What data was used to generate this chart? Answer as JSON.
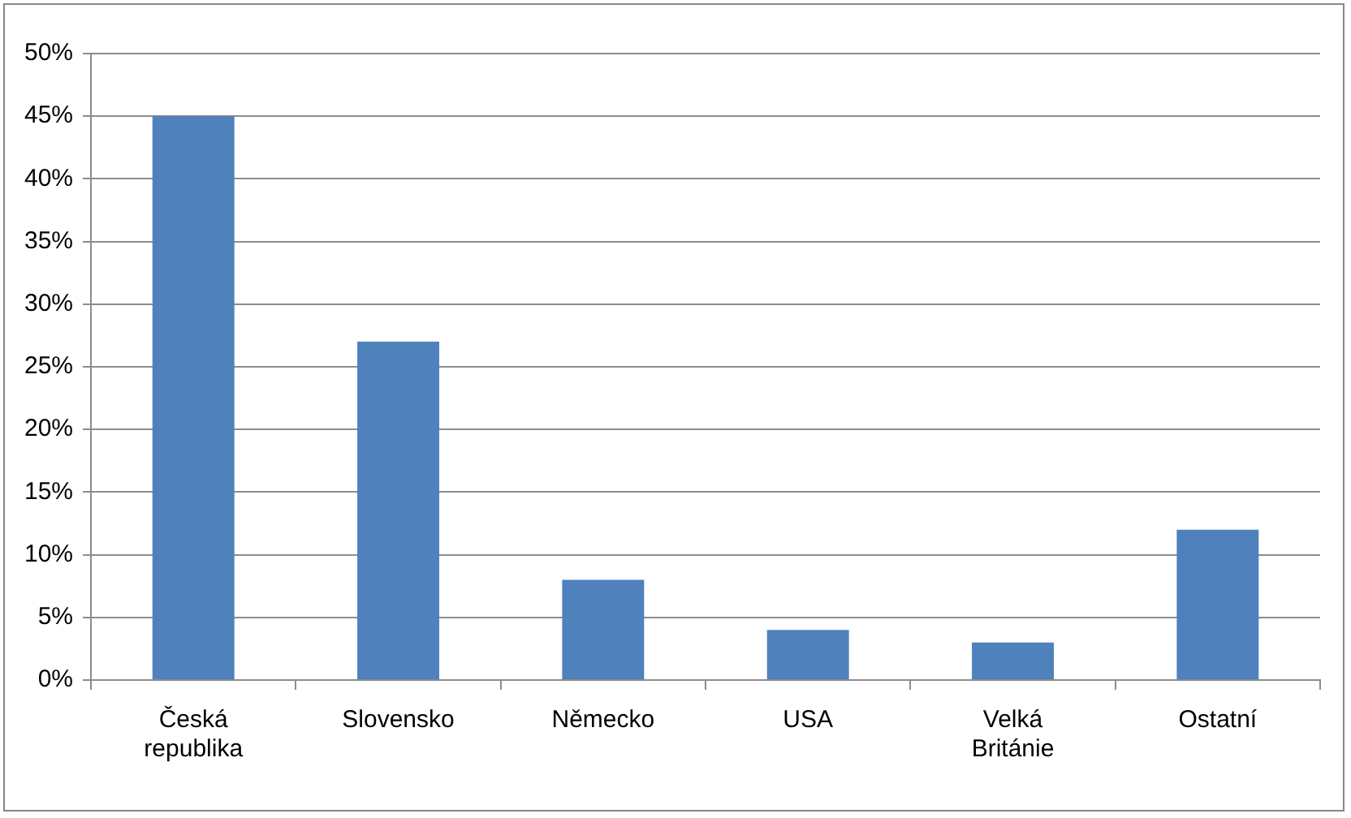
{
  "chart_data": {
    "type": "bar",
    "categories": [
      "Česká republika",
      "Slovensko",
      "Německo",
      "USA",
      "Velká Británie",
      "Ostatní"
    ],
    "values": [
      45,
      27,
      8,
      4,
      3,
      12
    ],
    "color": "#4f81bd",
    "ylim": [
      0,
      50
    ],
    "yticks": [
      {
        "value": 0,
        "label": "0%"
      },
      {
        "value": 5,
        "label": "5%"
      },
      {
        "value": 10,
        "label": "10%"
      },
      {
        "value": 15,
        "label": "15%"
      },
      {
        "value": 20,
        "label": "20%"
      },
      {
        "value": 25,
        "label": "25%"
      },
      {
        "value": 30,
        "label": "30%"
      },
      {
        "value": 35,
        "label": "35%"
      },
      {
        "value": 40,
        "label": "40%"
      },
      {
        "value": 45,
        "label": "45%"
      },
      {
        "value": 50,
        "label": "50%"
      }
    ],
    "grid": "y",
    "legend": false
  }
}
